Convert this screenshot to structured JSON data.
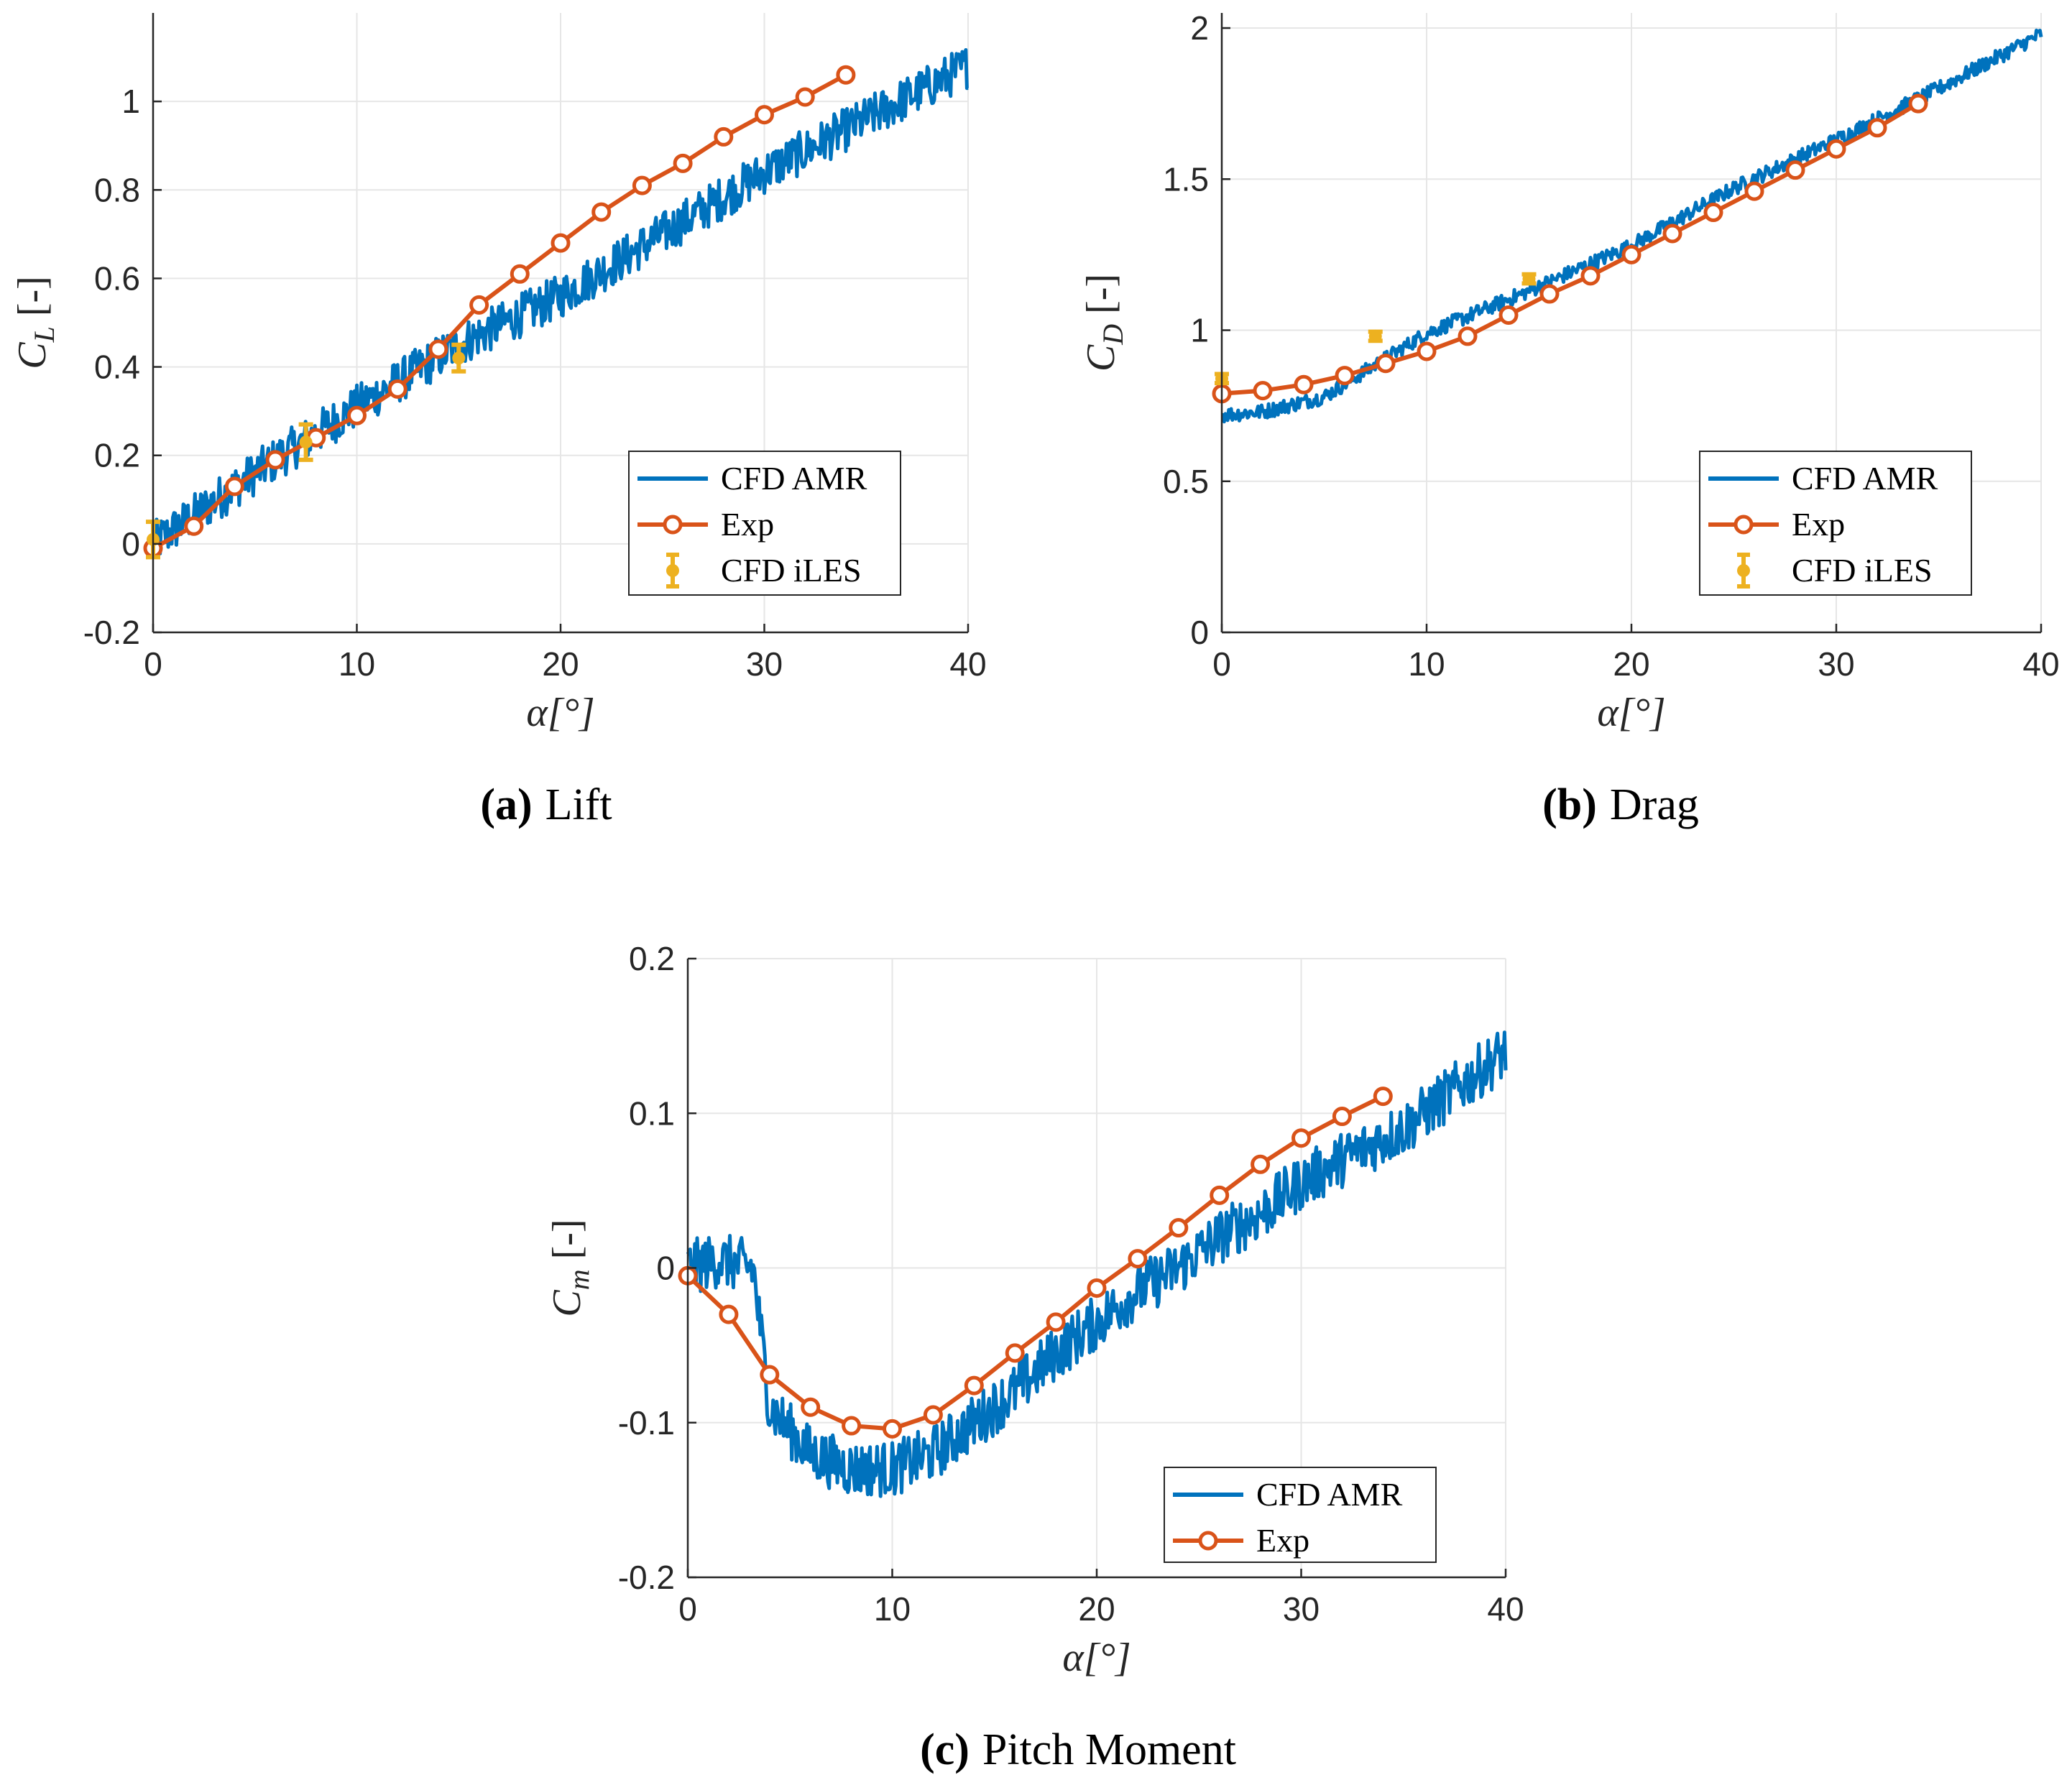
{
  "colors": {
    "cfd_amr": "#0072BD",
    "exp": "#D95319",
    "cfd_iles": "#EDB120",
    "grid": "#E6E6E6",
    "axis": "#262626"
  },
  "captions": [
    {
      "tag": "(a)",
      "text": "Lift"
    },
    {
      "tag": "(b)",
      "text": "Drag"
    },
    {
      "tag": "(c)",
      "text": "Pitch Moment"
    }
  ],
  "chart_data": [
    {
      "type": "line",
      "id": "lift",
      "xlabel": "α[°]",
      "ylabel_symbol": "C",
      "ylabel_sub": "L",
      "ylabel_unit": "[-]",
      "xlim": [
        0,
        40
      ],
      "ylim": [
        -0.2,
        1.2
      ],
      "xticks": [
        0,
        10,
        20,
        30,
        40
      ],
      "yticks": [
        -0.2,
        0,
        0.2,
        0.4,
        0.6,
        0.8,
        1
      ],
      "ytick_labels": [
        "-0.2",
        "0",
        "0.2",
        "0.4",
        "0.6",
        "0.8",
        "1"
      ],
      "grid": true,
      "legend": {
        "placement": "bottom-right",
        "entries": [
          "CFD AMR",
          "Exp",
          "CFD iLES"
        ]
      },
      "series": [
        {
          "name": "CFD AMR",
          "style": "noisy-line",
          "x": [
            0,
            5,
            10,
            15,
            20,
            25,
            30,
            35,
            40
          ],
          "y": [
            0.0,
            0.16,
            0.31,
            0.45,
            0.56,
            0.7,
            0.84,
            0.96,
            1.08
          ],
          "noise": 0.05
        },
        {
          "name": "Exp",
          "style": "line-circle",
          "x": [
            0,
            2,
            4,
            6,
            8,
            10,
            12,
            14,
            16,
            18,
            20,
            22,
            24,
            26,
            28,
            30,
            32,
            34
          ],
          "y": [
            -0.01,
            0.04,
            0.13,
            0.19,
            0.24,
            0.29,
            0.35,
            0.44,
            0.54,
            0.61,
            0.68,
            0.75,
            0.81,
            0.86,
            0.92,
            0.97,
            1.01,
            1.06
          ]
        },
        {
          "name": "CFD iLES",
          "style": "errorbar",
          "x": [
            0,
            7.5,
            15
          ],
          "y": [
            0.01,
            0.23,
            0.42
          ],
          "err": [
            0.04,
            0.04,
            0.03
          ]
        }
      ]
    },
    {
      "type": "line",
      "id": "drag",
      "xlabel": "α[°]",
      "ylabel_symbol": "C",
      "ylabel_sub": "D",
      "ylabel_unit": "[-]",
      "xlim": [
        0,
        40
      ],
      "ylim": [
        0,
        2.05
      ],
      "xticks": [
        0,
        10,
        20,
        30,
        40
      ],
      "yticks": [
        0,
        0.5,
        1,
        1.5,
        2
      ],
      "ytick_labels": [
        "0",
        "0.5",
        "1",
        "1.5",
        "2"
      ],
      "grid": true,
      "legend": {
        "placement": "bottom-right",
        "entries": [
          "CFD AMR",
          "Exp",
          "CFD iLES"
        ]
      },
      "series": [
        {
          "name": "CFD AMR",
          "style": "noisy-line",
          "x": [
            0,
            2,
            5,
            10,
            15,
            20,
            25,
            30,
            35,
            40
          ],
          "y": [
            0.72,
            0.73,
            0.78,
            0.99,
            1.13,
            1.28,
            1.47,
            1.63,
            1.8,
            1.98
          ],
          "noise": 0.025
        },
        {
          "name": "Exp",
          "style": "line-circle",
          "x": [
            0,
            2,
            4,
            6,
            8,
            10,
            12,
            14,
            16,
            18,
            20,
            22,
            24,
            26,
            28,
            30,
            32,
            34
          ],
          "y": [
            0.79,
            0.8,
            0.82,
            0.85,
            0.89,
            0.93,
            0.98,
            1.05,
            1.12,
            1.18,
            1.25,
            1.32,
            1.39,
            1.46,
            1.53,
            1.6,
            1.67,
            1.75
          ]
        },
        {
          "name": "CFD iLES",
          "style": "errorbar",
          "x": [
            0,
            7.5,
            15
          ],
          "y": [
            0.84,
            0.98,
            1.17
          ],
          "err": [
            0.015,
            0.015,
            0.015
          ]
        }
      ]
    },
    {
      "type": "line",
      "id": "pitch",
      "xlabel": "α[°]",
      "ylabel_symbol": "C",
      "ylabel_sub": "m",
      "ylabel_unit": "[-]",
      "xlim": [
        0,
        40
      ],
      "ylim": [
        -0.2,
        0.2
      ],
      "xticks": [
        0,
        10,
        20,
        30,
        40
      ],
      "yticks": [
        -0.2,
        -0.1,
        0,
        0.1,
        0.2
      ],
      "ytick_labels": [
        "-0.2",
        "-0.1",
        "0",
        "0.1",
        "0.2"
      ],
      "grid": true,
      "legend": {
        "placement": "bottom-right",
        "entries": [
          "CFD AMR",
          "Exp"
        ]
      },
      "series": [
        {
          "name": "CFD AMR",
          "style": "noisy-line",
          "x": [
            0,
            1.5,
            3.2,
            4,
            6,
            8,
            10,
            12,
            14,
            16,
            18,
            20,
            22,
            24,
            26,
            28,
            30,
            32,
            35,
            38,
            40
          ],
          "y": [
            0.0,
            0.005,
            0.0,
            -0.09,
            -0.12,
            -0.13,
            -0.13,
            -0.12,
            -0.1,
            -0.08,
            -0.055,
            -0.035,
            -0.015,
            0.0,
            0.02,
            0.035,
            0.055,
            0.07,
            0.09,
            0.12,
            0.14
          ],
          "noise": 0.018
        },
        {
          "name": "Exp",
          "style": "line-circle",
          "x": [
            0,
            2,
            4,
            6,
            8,
            10,
            12,
            14,
            16,
            18,
            20,
            22,
            24,
            26,
            28,
            30,
            32,
            34
          ],
          "y": [
            -0.005,
            -0.03,
            -0.069,
            -0.09,
            -0.102,
            -0.104,
            -0.095,
            -0.076,
            -0.055,
            -0.035,
            -0.013,
            0.006,
            0.026,
            0.047,
            0.067,
            0.084,
            0.098,
            0.111
          ]
        }
      ]
    }
  ]
}
